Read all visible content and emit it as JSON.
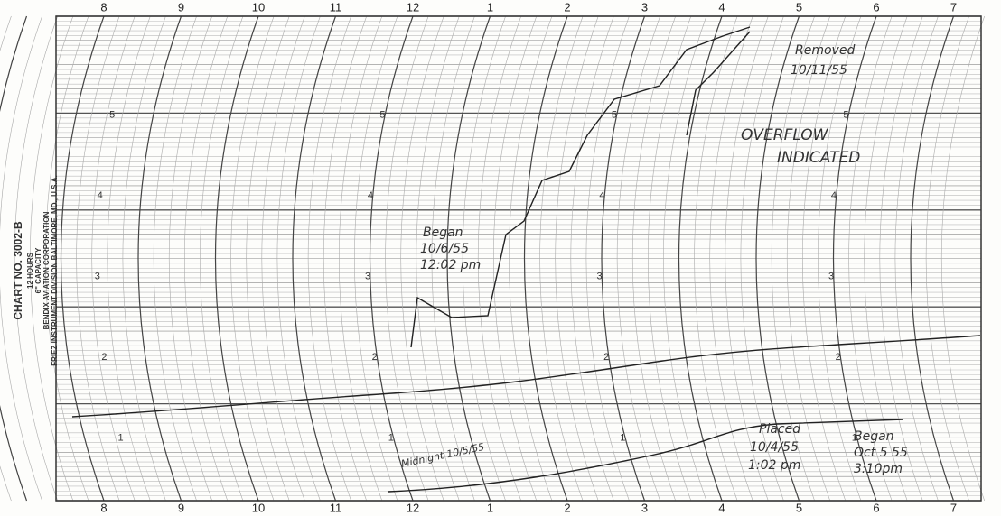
{
  "top_hours": [
    "8",
    "9",
    "10",
    "11",
    "12",
    "1",
    "2",
    "3",
    "4",
    "5",
    "6",
    "7"
  ],
  "bottom_hours": [
    "8",
    "9",
    "10",
    "11",
    "12",
    "1",
    "2",
    "3",
    "4",
    "5",
    "6",
    "7"
  ],
  "scale_labels": [
    "1",
    "2",
    "3",
    "4",
    "5"
  ],
  "imprint": {
    "chart_no": "CHART NO. 3002-B",
    "hours": "12 HOURS",
    "capacity": "6\" CAPACITY",
    "company": "BENDIX AVIATION CORPORATION",
    "division": "FRIEZ INSTRUMENT DIVISION BALTIMORE, MD., U.S.A."
  },
  "annotations": {
    "removed": [
      "Removed",
      "10/11/55"
    ],
    "overflow": [
      "OVERFLOW",
      "INDICATED"
    ],
    "began_1": [
      "Began",
      "10/6/55",
      "12:02 pm"
    ],
    "placed": [
      "Placed",
      "10/4/55",
      "1:02 pm"
    ],
    "began_2": [
      "Began",
      "Oct 5 55",
      "3:10pm"
    ],
    "midnight": "Midnight 10/5/55"
  }
}
